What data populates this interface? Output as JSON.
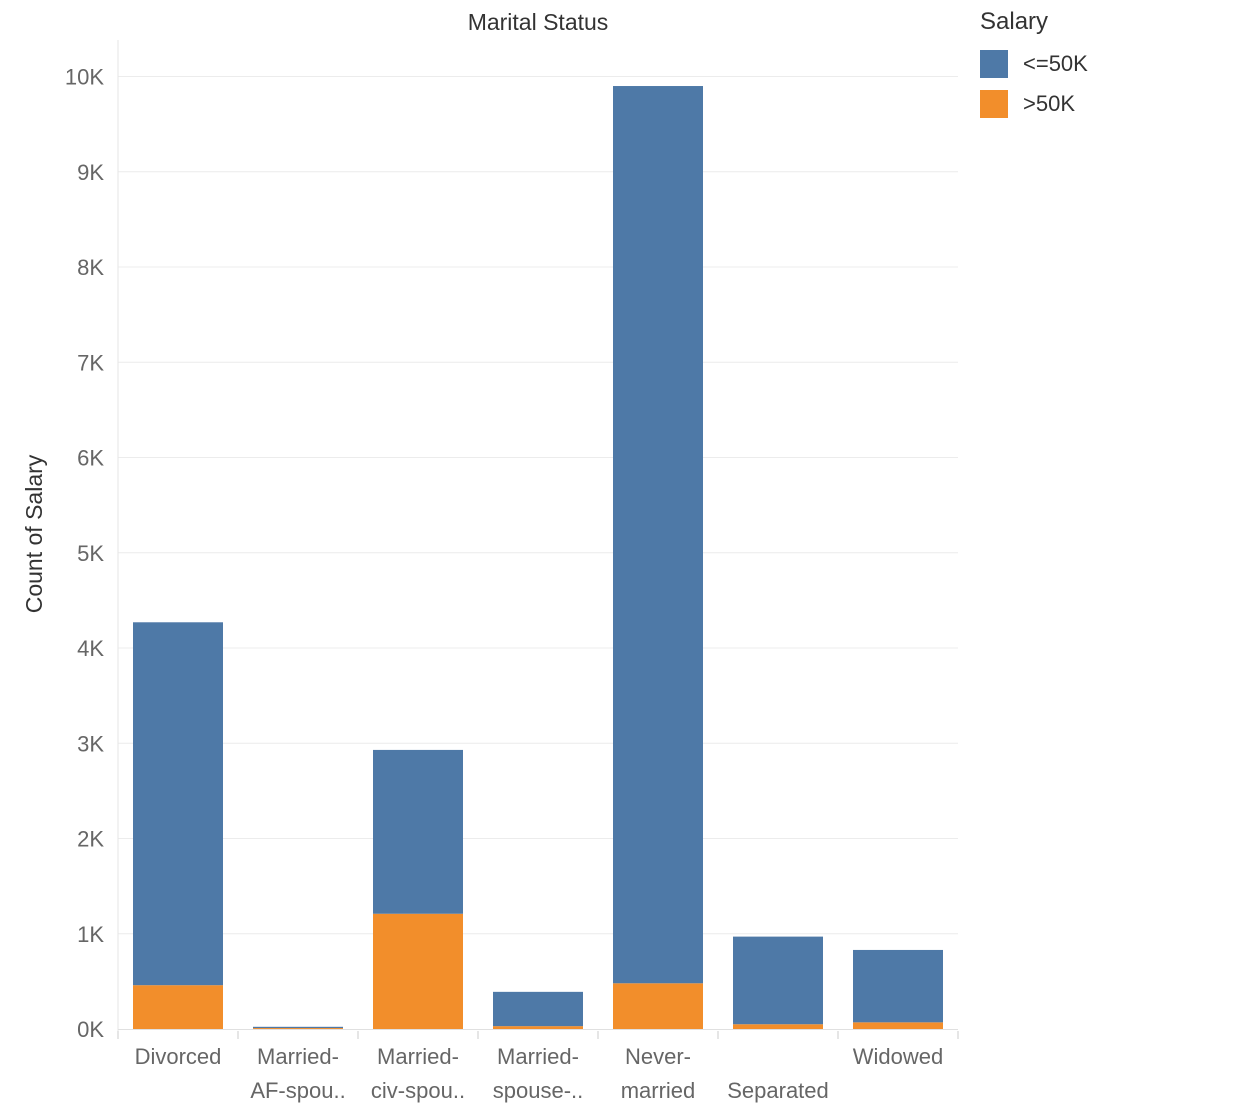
{
  "chart_data": {
    "type": "bar",
    "stacked": true,
    "title": "Marital Status",
    "xlabel": "",
    "ylabel": "Count of Salary",
    "ylim": [
      0,
      10400
    ],
    "yticks": [
      0,
      1000,
      2000,
      3000,
      4000,
      5000,
      6000,
      7000,
      8000,
      9000,
      10000
    ],
    "ytick_labels": [
      "0K",
      "1K",
      "2K",
      "3K",
      "4K",
      "5K",
      "6K",
      "7K",
      "8K",
      "9K",
      "10K"
    ],
    "categories": [
      "Divorced",
      "Married-AF-spouse",
      "Married-civ-spouse",
      "Married-spouse-absent",
      "Never-married",
      "Separated",
      "Widowed"
    ],
    "category_labels": [
      [
        "Divorced"
      ],
      [
        "Married-",
        "AF-spou.."
      ],
      [
        "Married-",
        "civ-spou.."
      ],
      [
        "Married-",
        "spouse-.."
      ],
      [
        "Never-",
        "married"
      ],
      [
        "Separated"
      ],
      [
        "Widowed"
      ]
    ],
    "series": [
      {
        "name": "<=50K",
        "color": "#4e79a7",
        "values": [
          3810,
          13,
          1720,
          360,
          9420,
          920,
          760
        ]
      },
      {
        "name": ">50K",
        "color": "#f28e2b",
        "values": [
          460,
          10,
          1210,
          30,
          480,
          50,
          70
        ]
      }
    ],
    "grid": true,
    "legend": {
      "title": "Salary",
      "position": "right"
    }
  }
}
